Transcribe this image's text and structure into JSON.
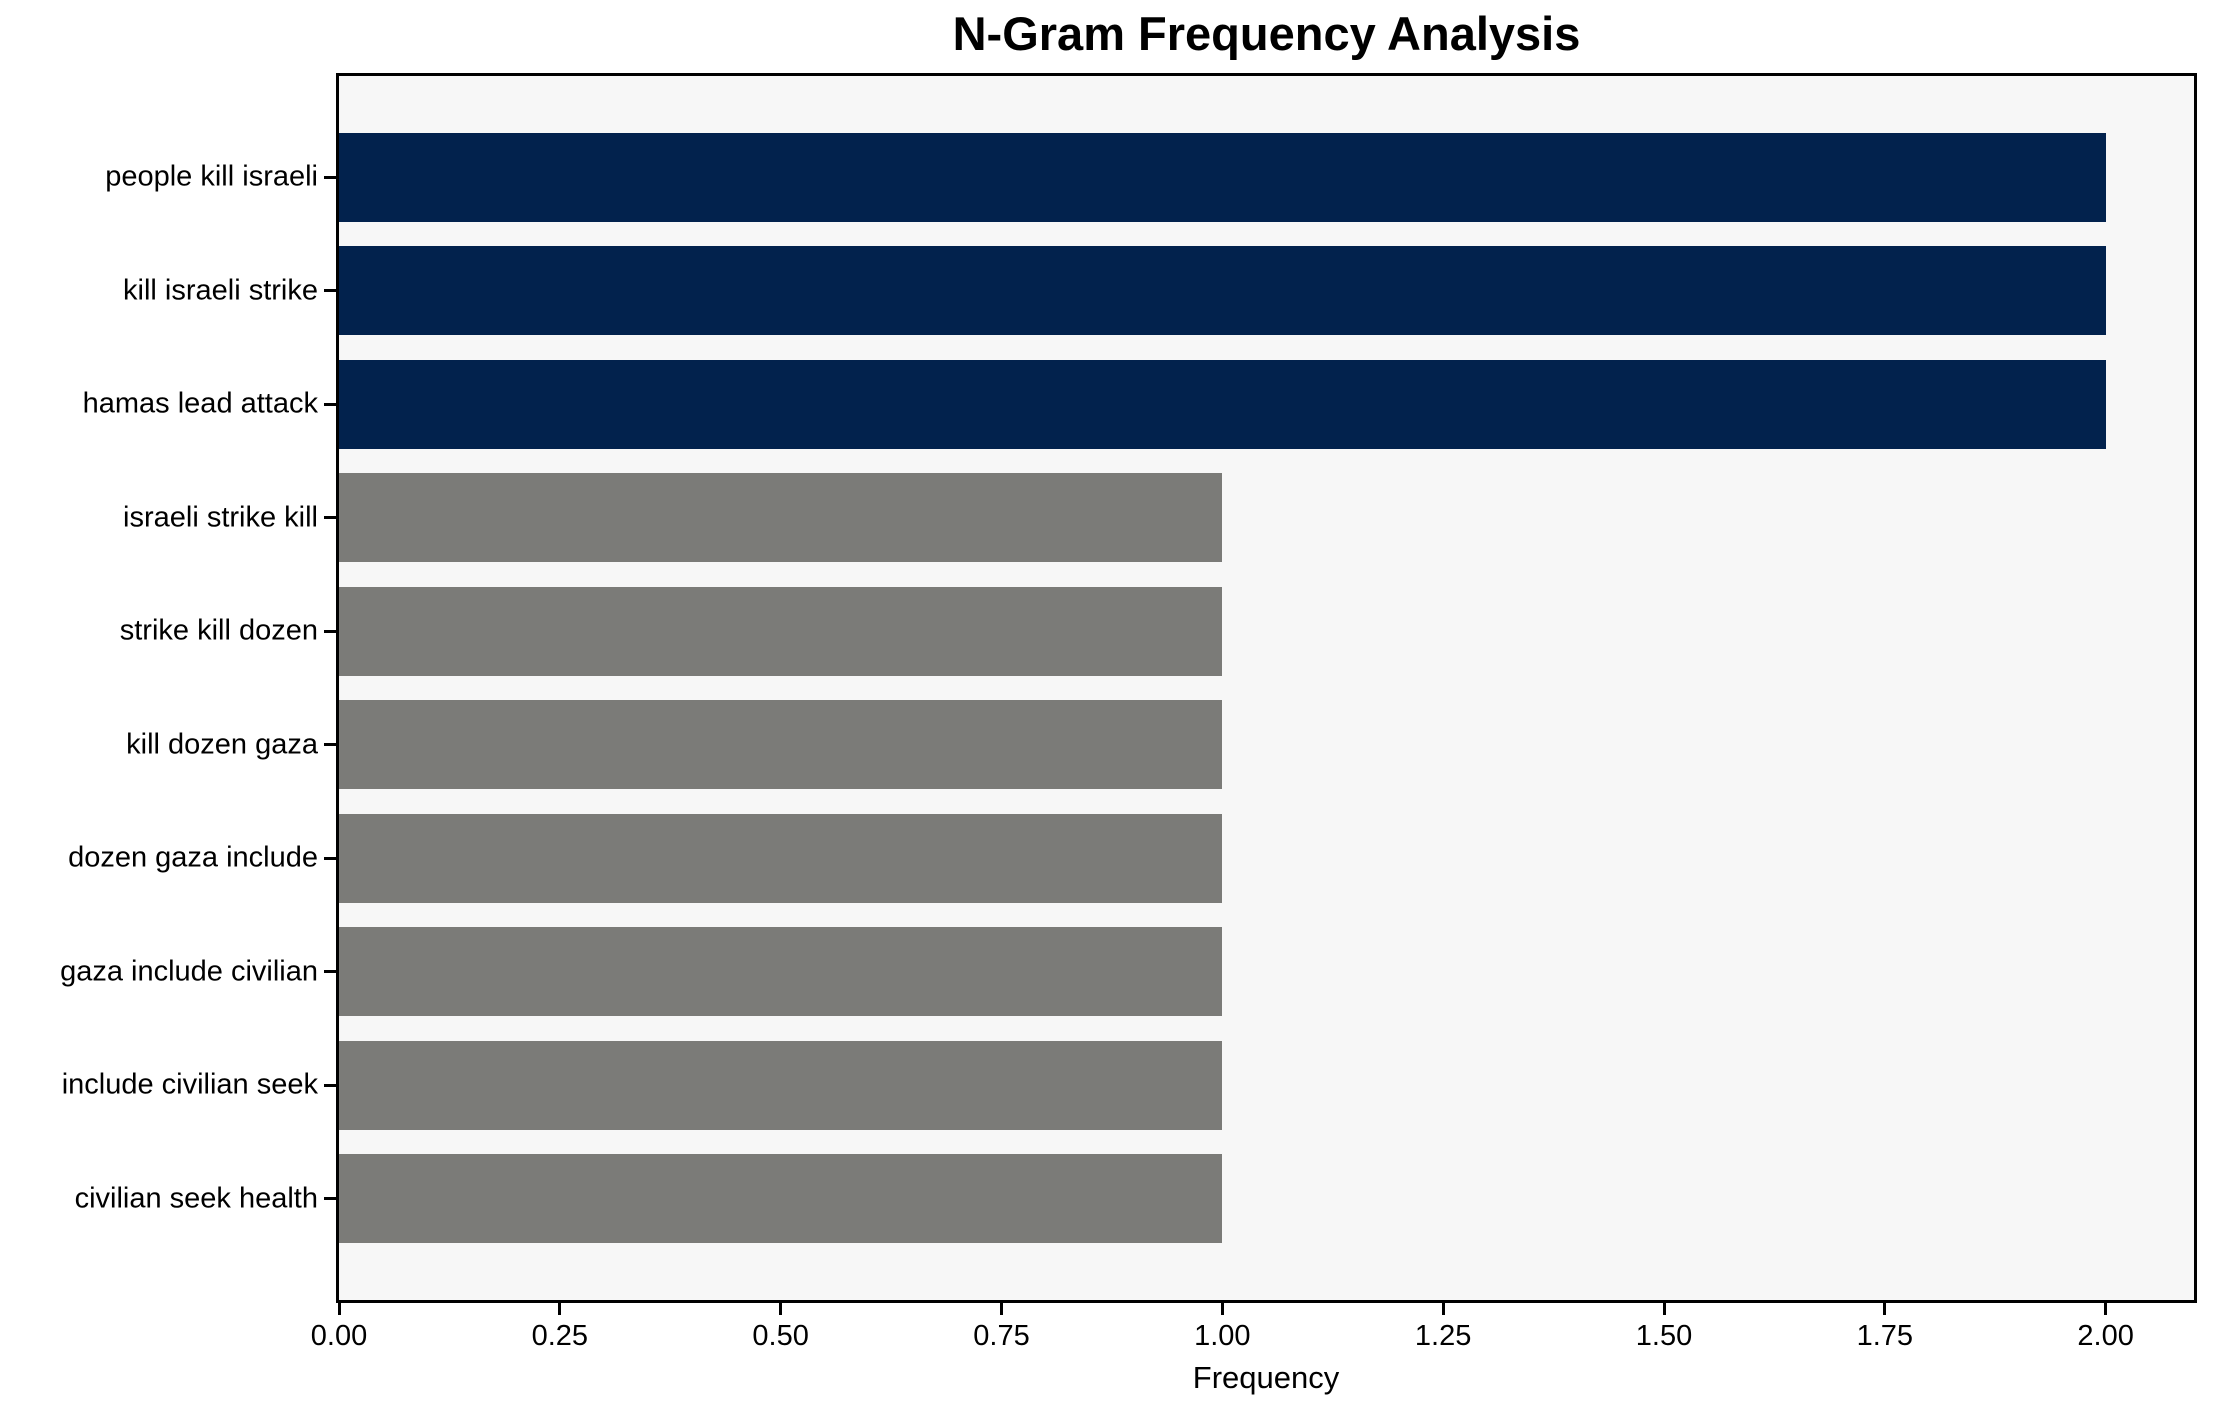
{
  "chart_data": {
    "type": "bar",
    "orientation": "horizontal",
    "title": "N-Gram Frequency Analysis",
    "xlabel": "Frequency",
    "ylabel": "",
    "categories": [
      "people kill israeli",
      "kill israeli strike",
      "hamas lead attack",
      "israeli strike kill",
      "strike kill dozen",
      "kill dozen gaza",
      "dozen gaza include",
      "gaza include civilian",
      "include civilian seek",
      "civilian seek health"
    ],
    "values": [
      2,
      2,
      2,
      1,
      1,
      1,
      1,
      1,
      1,
      1
    ],
    "bar_colors": [
      "#02224d",
      "#02224d",
      "#02224d",
      "#7b7b78",
      "#7b7b78",
      "#7b7b78",
      "#7b7b78",
      "#7b7b78",
      "#7b7b78",
      "#7b7b78"
    ],
    "xticks": [
      0.0,
      0.25,
      0.5,
      0.75,
      1.0,
      1.25,
      1.5,
      1.75,
      2.0
    ],
    "xtick_labels": [
      "0.00",
      "0.25",
      "0.50",
      "0.75",
      "1.00",
      "1.25",
      "1.50",
      "1.75",
      "2.00"
    ],
    "xlim": [
      0,
      2.1
    ],
    "grid": false,
    "legend": "none",
    "colors": {
      "high_bar": "#02224d",
      "low_bar": "#7b7b78",
      "plot_background": "#f7f7f7",
      "figure_background": "#ffffff",
      "spine": "#000000",
      "text": "#000000"
    }
  }
}
